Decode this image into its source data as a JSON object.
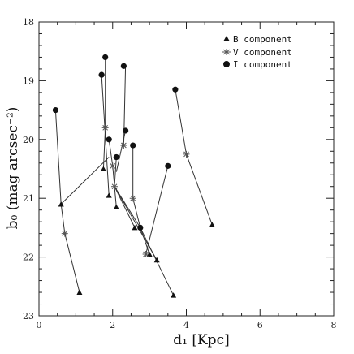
{
  "chart_data": {
    "type": "scatter",
    "title": "",
    "xlabel": "d₁ [Kpc]",
    "ylabel": "b₀ (mag arcsec⁻²)",
    "xlim": [
      0,
      8
    ],
    "ylim": [
      23,
      18
    ],
    "y_inverted": true,
    "grid": false,
    "legend_position": "top-right",
    "x_ticks": [
      "0",
      "2",
      "4",
      "6",
      "8"
    ],
    "y_ticks": [
      "18",
      "19",
      "20",
      "21",
      "22",
      "23"
    ],
    "series": [
      {
        "name": "B component",
        "marker": "triangle",
        "x": [
          0.6,
          1.1,
          1.75,
          1.9,
          2.1,
          2.6,
          3.0,
          3.2,
          3.65,
          4.7
        ],
        "y": [
          21.1,
          22.6,
          20.5,
          20.95,
          21.15,
          21.5,
          21.95,
          22.05,
          22.65,
          21.45
        ]
      },
      {
        "name": "V component",
        "marker": "star",
        "x": [
          0.7,
          1.8,
          2.0,
          2.05,
          2.3,
          2.55,
          2.9,
          4.0
        ],
        "y": [
          21.6,
          19.8,
          20.45,
          20.8,
          20.1,
          21.0,
          21.95,
          20.25
        ]
      },
      {
        "name": "I component",
        "marker": "circle",
        "x": [
          0.45,
          1.7,
          1.8,
          1.9,
          2.1,
          2.3,
          2.35,
          2.55,
          2.75,
          3.5,
          3.7
        ],
        "y": [
          19.5,
          18.9,
          18.6,
          20.0,
          20.3,
          18.75,
          19.85,
          20.1,
          21.5,
          20.45,
          19.15
        ]
      }
    ],
    "tracks": [
      [
        [
          0.45,
          19.5
        ],
        [
          0.6,
          21.1
        ],
        [
          0.7,
          21.6
        ],
        [
          1.1,
          22.6
        ]
      ],
      [
        [
          1.8,
          18.6
        ],
        [
          1.8,
          19.8
        ],
        [
          1.75,
          20.5
        ]
      ],
      [
        [
          1.7,
          18.9
        ],
        [
          1.9,
          20.95
        ]
      ],
      [
        [
          1.9,
          20.0
        ],
        [
          2.0,
          20.45
        ],
        [
          2.1,
          21.15
        ]
      ],
      [
        [
          2.1,
          20.3
        ],
        [
          2.05,
          20.8
        ],
        [
          2.6,
          21.5
        ]
      ],
      [
        [
          2.35,
          18.75
        ],
        [
          2.3,
          20.1
        ]
      ],
      [
        [
          2.35,
          19.85
        ],
        [
          2.1,
          20.55
        ]
      ],
      [
        [
          2.55,
          20.1
        ],
        [
          2.55,
          21.0
        ],
        [
          2.75,
          21.5
        ],
        [
          3.0,
          21.95
        ]
      ],
      [
        [
          3.5,
          20.45
        ],
        [
          2.9,
          21.95
        ]
      ],
      [
        [
          3.7,
          19.15
        ],
        [
          4.0,
          20.25
        ],
        [
          4.7,
          21.45
        ]
      ],
      [
        [
          2.05,
          20.8
        ],
        [
          3.2,
          22.05
        ]
      ],
      [
        [
          2.05,
          20.8
        ],
        [
          2.75,
          21.5
        ],
        [
          3.65,
          22.65
        ]
      ],
      [
        [
          0.6,
          21.1
        ],
        [
          1.9,
          20.3
        ]
      ]
    ]
  }
}
